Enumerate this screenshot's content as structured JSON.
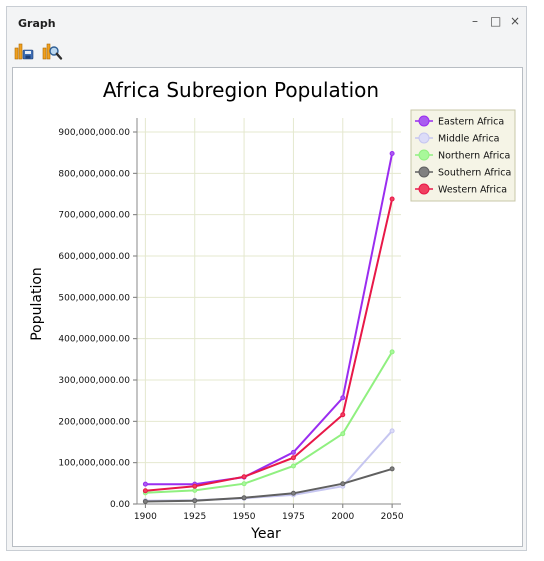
{
  "window": {
    "title": "Graph",
    "buttons": {
      "minimize": "–",
      "maximize": "□",
      "close": "×"
    }
  },
  "toolbar": {
    "items": [
      {
        "icon": "save-chart-icon"
      },
      {
        "icon": "chart-properties-icon"
      }
    ]
  },
  "chart_data": {
    "type": "line",
    "title": "Africa Subregion Population",
    "xlabel": "Year",
    "ylabel": "Population",
    "x": [
      1900,
      1925,
      1950,
      1975,
      2000,
      2050
    ],
    "x_tick_labels": [
      "1900",
      "1925",
      "1950",
      "1975",
      "2000",
      "2050"
    ],
    "ylim": [
      0,
      900000000
    ],
    "y_ticks": [
      0,
      100000000,
      200000000,
      300000000,
      400000000,
      500000000,
      600000000,
      700000000,
      800000000,
      900000000
    ],
    "y_tick_labels": [
      "0.00",
      "100,000,000.00",
      "200,000,000.00",
      "300,000,000.00",
      "400,000,000.00",
      "500,000,000.00",
      "600,000,000.00",
      "700,000,000.00",
      "800,000,000.00",
      "900,000,000.00"
    ],
    "grid": true,
    "legend_position": "top-right",
    "series": [
      {
        "name": "Eastern Africa",
        "color": "#9a2df0",
        "marker_fill": "#a95cf0",
        "values": [
          48000000,
          48000000,
          65000000,
          125000000,
          257000000,
          848000000
        ]
      },
      {
        "name": "Middle Africa",
        "color": "#c6c6f0",
        "marker_fill": "#dcdcf8",
        "values": [
          8000000,
          9000000,
          14000000,
          22000000,
          43000000,
          177000000
        ]
      },
      {
        "name": "Northern Africa",
        "color": "#90f080",
        "marker_fill": "#a8f89a",
        "values": [
          27000000,
          33000000,
          49000000,
          92000000,
          170000000,
          368000000
        ]
      },
      {
        "name": "Southern Africa",
        "color": "#606060",
        "marker_fill": "#808080",
        "values": [
          6000000,
          8000000,
          15000000,
          26000000,
          49000000,
          85000000
        ]
      },
      {
        "name": "Western Africa",
        "color": "#e81848",
        "marker_fill": "#f04060",
        "values": [
          32000000,
          43000000,
          66000000,
          112000000,
          216000000,
          738000000
        ]
      }
    ]
  }
}
